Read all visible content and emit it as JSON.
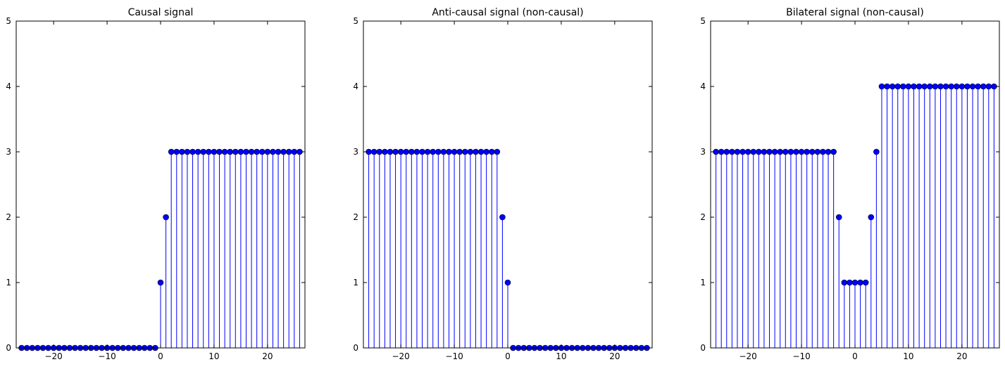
{
  "figure": {
    "stem_color": "#0000ff",
    "baseline_color": "#ff0000"
  },
  "chart_data": [
    {
      "type": "stem",
      "title": "Causal signal",
      "xlabel": "",
      "ylabel": "",
      "xlim": [
        -27,
        27
      ],
      "ylim": [
        0,
        5
      ],
      "xticks": [
        -20,
        -10,
        0,
        10,
        20
      ],
      "yticks": [
        0,
        1,
        2,
        3,
        4,
        5
      ],
      "x": [
        -26,
        -25,
        -24,
        -23,
        -22,
        -21,
        -20,
        -19,
        -18,
        -17,
        -16,
        -15,
        -14,
        -13,
        -12,
        -11,
        -10,
        -9,
        -8,
        -7,
        -6,
        -5,
        -4,
        -3,
        -2,
        -1,
        0,
        1,
        2,
        3,
        4,
        5,
        6,
        7,
        8,
        9,
        10,
        11,
        12,
        13,
        14,
        15,
        16,
        17,
        18,
        19,
        20,
        21,
        22,
        23,
        24,
        25,
        26
      ],
      "values": [
        0,
        0,
        0,
        0,
        0,
        0,
        0,
        0,
        0,
        0,
        0,
        0,
        0,
        0,
        0,
        0,
        0,
        0,
        0,
        0,
        0,
        0,
        0,
        0,
        0,
        0,
        1,
        2,
        3,
        3,
        3,
        3,
        3,
        3,
        3,
        3,
        3,
        3,
        3,
        3,
        3,
        3,
        3,
        3,
        3,
        3,
        3,
        3,
        3,
        3,
        3,
        3,
        3
      ]
    },
    {
      "type": "stem",
      "title": "Anti-causal signal (non-causal)",
      "xlabel": "",
      "ylabel": "",
      "xlim": [
        -27,
        27
      ],
      "ylim": [
        0,
        5
      ],
      "xticks": [
        -20,
        -10,
        0,
        10,
        20
      ],
      "yticks": [
        0,
        1,
        2,
        3,
        4,
        5
      ],
      "x": [
        -26,
        -25,
        -24,
        -23,
        -22,
        -21,
        -20,
        -19,
        -18,
        -17,
        -16,
        -15,
        -14,
        -13,
        -12,
        -11,
        -10,
        -9,
        -8,
        -7,
        -6,
        -5,
        -4,
        -3,
        -2,
        -1,
        0,
        1,
        2,
        3,
        4,
        5,
        6,
        7,
        8,
        9,
        10,
        11,
        12,
        13,
        14,
        15,
        16,
        17,
        18,
        19,
        20,
        21,
        22,
        23,
        24,
        25,
        26
      ],
      "values": [
        3,
        3,
        3,
        3,
        3,
        3,
        3,
        3,
        3,
        3,
        3,
        3,
        3,
        3,
        3,
        3,
        3,
        3,
        3,
        3,
        3,
        3,
        3,
        3,
        3,
        2,
        1,
        0,
        0,
        0,
        0,
        0,
        0,
        0,
        0,
        0,
        0,
        0,
        0,
        0,
        0,
        0,
        0,
        0,
        0,
        0,
        0,
        0,
        0,
        0,
        0,
        0,
        0
      ]
    },
    {
      "type": "stem",
      "title": "Bilateral signal (non-causal)",
      "xlabel": "",
      "ylabel": "",
      "xlim": [
        -27,
        27
      ],
      "ylim": [
        0,
        5
      ],
      "xticks": [
        -20,
        -10,
        0,
        10,
        20
      ],
      "yticks": [
        0,
        1,
        2,
        3,
        4,
        5
      ],
      "x": [
        -26,
        -25,
        -24,
        -23,
        -22,
        -21,
        -20,
        -19,
        -18,
        -17,
        -16,
        -15,
        -14,
        -13,
        -12,
        -11,
        -10,
        -9,
        -8,
        -7,
        -6,
        -5,
        -4,
        -3,
        -2,
        -1,
        0,
        1,
        2,
        3,
        4,
        5,
        6,
        7,
        8,
        9,
        10,
        11,
        12,
        13,
        14,
        15,
        16,
        17,
        18,
        19,
        20,
        21,
        22,
        23,
        24,
        25,
        26
      ],
      "values": [
        3,
        3,
        3,
        3,
        3,
        3,
        3,
        3,
        3,
        3,
        3,
        3,
        3,
        3,
        3,
        3,
        3,
        3,
        3,
        3,
        3,
        3,
        3,
        2,
        1,
        1,
        1,
        1,
        1,
        2,
        3,
        4,
        4,
        4,
        4,
        4,
        4,
        4,
        4,
        4,
        4,
        4,
        4,
        4,
        4,
        4,
        4,
        4,
        4,
        4,
        4,
        4,
        4
      ]
    }
  ]
}
